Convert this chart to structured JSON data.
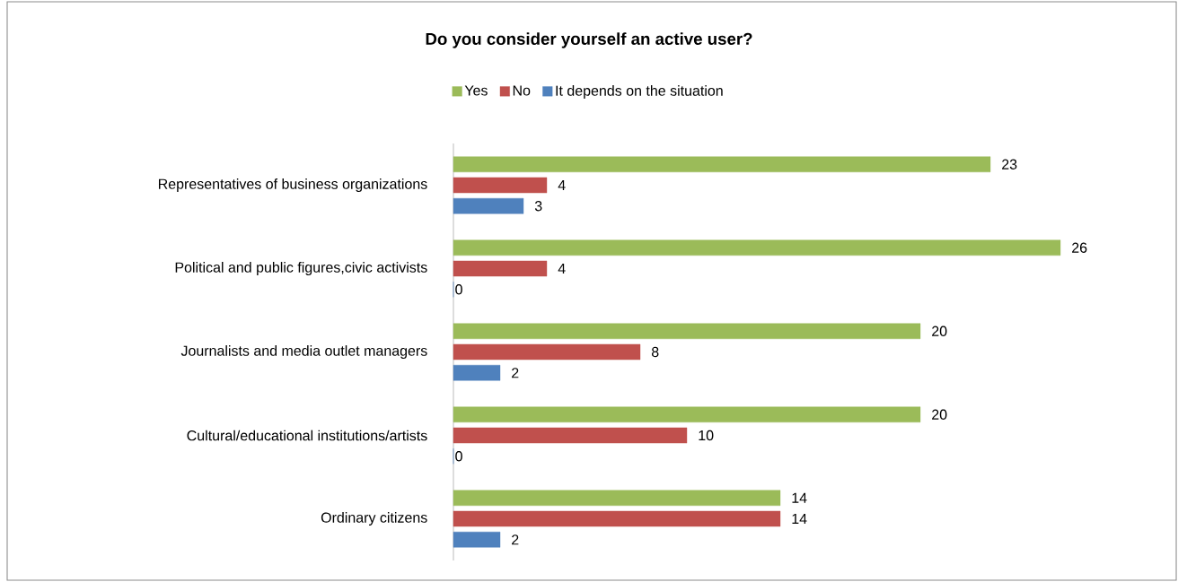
{
  "chart_data": {
    "type": "bar",
    "orientation": "horizontal",
    "title": "Do you consider yourself an active user?",
    "categories": [
      "Representatives of business organizations",
      "Political and public figures,civic activists",
      "Journalists and media outlet managers",
      "Cultural/educational institutions/artists",
      "Ordinary citizens"
    ],
    "series": [
      {
        "name": "Yes",
        "color": "#9bbb59",
        "values": [
          23,
          26,
          20,
          20,
          14
        ]
      },
      {
        "name": "No",
        "color": "#c0504d",
        "values": [
          4,
          4,
          8,
          10,
          14
        ]
      },
      {
        "name": "It depends on the situation",
        "color": "#4f81bd",
        "values": [
          3,
          0,
          2,
          0,
          2
        ]
      }
    ],
    "data_labels": true,
    "legend": "top",
    "tick_labels": "y"
  }
}
